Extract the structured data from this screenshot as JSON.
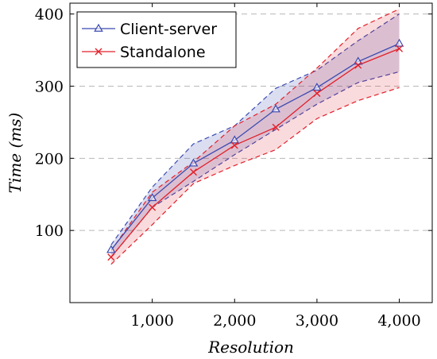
{
  "chart_data": {
    "type": "line",
    "xlabel": "Resolution",
    "ylabel": "Time (ms)",
    "ylabel_parts": {
      "main": "Time",
      "unit": "(ms)"
    },
    "x": [
      500,
      1000,
      1500,
      2000,
      2500,
      3000,
      3500,
      4000
    ],
    "xlim": [
      0,
      4400
    ],
    "ylim": [
      0,
      415
    ],
    "xticks": [
      1000,
      2000,
      3000,
      4000
    ],
    "xtick_labels": [
      "1,000",
      "2,000",
      "3,000",
      "4,000"
    ],
    "yticks": [
      100,
      200,
      300,
      400
    ],
    "ytick_labels": [
      "100",
      "200",
      "300",
      "400"
    ],
    "grid": "horizontal-dashed",
    "legend_position": "top-left",
    "series": [
      {
        "name": "Client-server",
        "color": "#3a49b0",
        "marker": "triangle",
        "values": [
          73,
          145,
          193,
          225,
          268,
          298,
          334,
          359
        ],
        "upper": [
          80,
          160,
          220,
          245,
          297,
          322,
          363,
          400
        ],
        "lower": [
          63,
          132,
          168,
          205,
          240,
          275,
          305,
          320
        ]
      },
      {
        "name": "Standalone",
        "color": "#e3202a",
        "marker": "x",
        "values": [
          63,
          132,
          181,
          218,
          243,
          290,
          329,
          352
        ],
        "upper": [
          72,
          153,
          195,
          245,
          275,
          325,
          380,
          407
        ],
        "lower": [
          53,
          108,
          165,
          190,
          212,
          255,
          280,
          298
        ]
      }
    ]
  }
}
